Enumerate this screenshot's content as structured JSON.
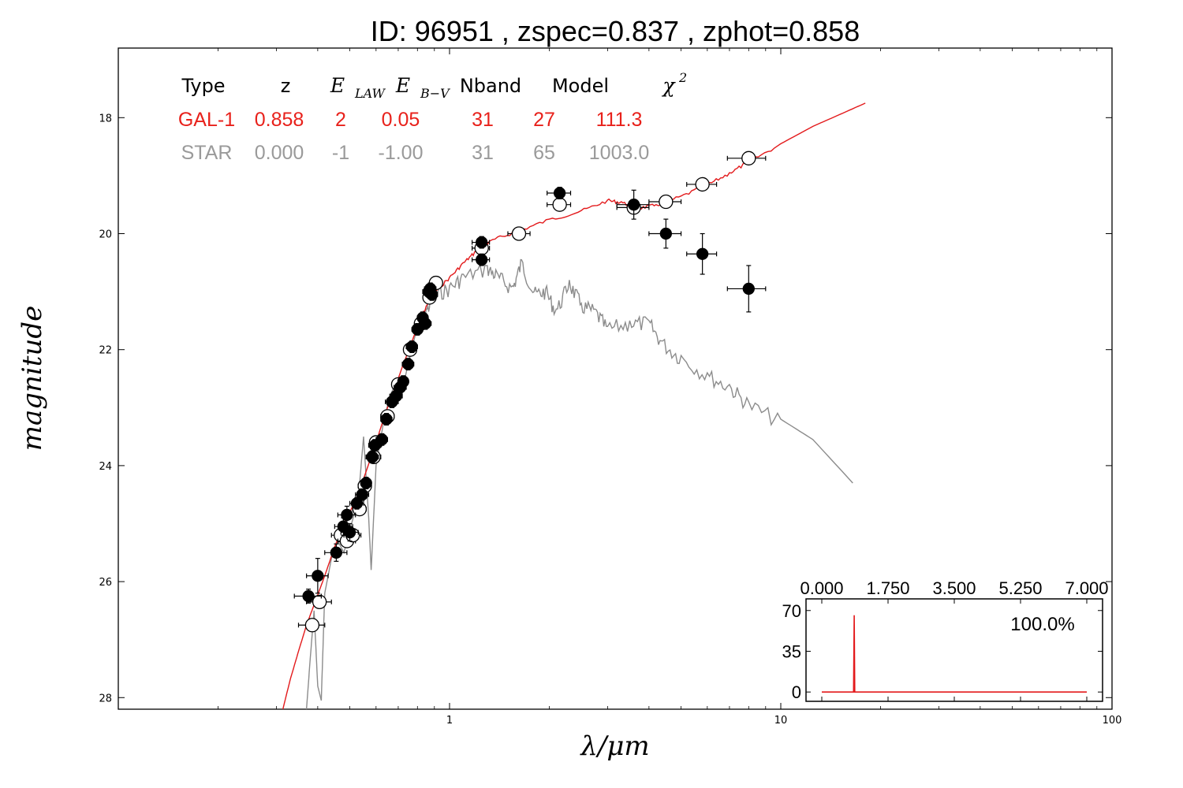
{
  "title": "ID:  96951 , zspec=0.837 , zphot=0.858",
  "chart_data": {
    "type": "scatter",
    "xlabel": "λ/μm",
    "ylabel": "magnitude",
    "xscale": "log",
    "xlim": [
      0.1,
      100
    ],
    "ylim": [
      28.2,
      16.8
    ],
    "y_inverted": true,
    "grid": false,
    "x_tick_labels": [
      "1",
      "10",
      "100"
    ],
    "y_tick_labels": [
      "18",
      "20",
      "22",
      "24",
      "26",
      "28"
    ],
    "table": {
      "headers": [
        "Type",
        "z",
        "E",
        "E",
        "Nband",
        "Model",
        "χ"
      ],
      "header_subscripts": [
        "",
        "",
        "LAW",
        "B−V",
        "",
        "",
        ""
      ],
      "header_superscript_chi": "2",
      "rows": [
        {
          "cells": [
            "GAL-1",
            "0.858",
            "2",
            "0.05",
            "31",
            "27",
            "111.3"
          ],
          "color": "#e8211b"
        },
        {
          "cells": [
            "STAR",
            "0.000",
            "-1",
            "-1.00",
            "31",
            "65",
            "1003.0"
          ],
          "color": "#9a9a9a"
        }
      ]
    },
    "series": [
      {
        "kind": "galaxy-model",
        "color": "#e31a1c",
        "points": [
          [
            0.314,
            28.2
          ],
          [
            0.33,
            27.7
          ],
          [
            0.35,
            27.2
          ],
          [
            0.37,
            26.75
          ],
          [
            0.39,
            26.4
          ],
          [
            0.42,
            25.9
          ],
          [
            0.45,
            25.4
          ],
          [
            0.48,
            25.0
          ],
          [
            0.5,
            24.8
          ],
          [
            0.53,
            24.5
          ],
          [
            0.56,
            24.1
          ],
          [
            0.6,
            23.6
          ],
          [
            0.64,
            23.1
          ],
          [
            0.68,
            22.7
          ],
          [
            0.72,
            22.3
          ],
          [
            0.76,
            21.95
          ],
          [
            0.8,
            21.6
          ],
          [
            0.85,
            21.25
          ],
          [
            0.9,
            21.0
          ],
          [
            1.0,
            20.75
          ],
          [
            1.1,
            20.5
          ],
          [
            1.2,
            20.3
          ],
          [
            1.35,
            20.1
          ],
          [
            1.6,
            19.95
          ],
          [
            2.0,
            19.75
          ],
          [
            2.5,
            19.6
          ],
          [
            3.0,
            19.42
          ],
          [
            3.3,
            19.45
          ],
          [
            3.7,
            19.55
          ],
          [
            4.2,
            19.5
          ],
          [
            5.0,
            19.35
          ],
          [
            6.0,
            19.15
          ],
          [
            7.0,
            18.95
          ],
          [
            8.0,
            18.75
          ],
          [
            10.0,
            18.45
          ],
          [
            12.5,
            18.15
          ],
          [
            15.0,
            17.95
          ],
          [
            18.0,
            17.75
          ]
        ]
      },
      {
        "kind": "star-model",
        "color": "#8c8c8c",
        "points": [
          [
            0.37,
            28.2
          ],
          [
            0.38,
            27.3
          ],
          [
            0.39,
            26.5
          ],
          [
            0.4,
            27.8
          ],
          [
            0.41,
            28.05
          ],
          [
            0.42,
            26.2
          ],
          [
            0.44,
            25.6
          ],
          [
            0.46,
            25.3
          ],
          [
            0.48,
            25.5
          ],
          [
            0.5,
            25.1
          ],
          [
            0.53,
            24.6
          ],
          [
            0.55,
            23.5
          ],
          [
            0.57,
            24.9
          ],
          [
            0.58,
            25.8
          ],
          [
            0.6,
            24.0
          ],
          [
            0.63,
            23.3
          ],
          [
            0.66,
            22.8
          ],
          [
            0.7,
            22.5
          ],
          [
            0.72,
            22.7
          ],
          [
            0.76,
            22.1
          ],
          [
            0.8,
            21.6
          ],
          [
            0.85,
            21.3
          ],
          [
            0.9,
            21.0
          ],
          [
            1.0,
            20.9
          ],
          [
            1.1,
            20.7
          ],
          [
            1.3,
            20.55
          ],
          [
            1.4,
            20.7
          ],
          [
            1.55,
            20.9
          ],
          [
            1.65,
            20.45
          ],
          [
            1.8,
            21.0
          ],
          [
            1.95,
            20.95
          ],
          [
            2.1,
            21.3
          ],
          [
            2.3,
            20.8
          ],
          [
            2.5,
            21.2
          ],
          [
            2.75,
            21.3
          ],
          [
            3.0,
            21.6
          ],
          [
            3.5,
            21.5
          ],
          [
            4.0,
            21.5
          ],
          [
            4.4,
            21.85
          ],
          [
            5.0,
            22.1
          ],
          [
            6.0,
            22.4
          ],
          [
            7.0,
            22.6
          ],
          [
            8.0,
            22.9
          ],
          [
            10.0,
            23.2
          ],
          [
            12.5,
            23.55
          ],
          [
            16.5,
            24.3
          ]
        ]
      },
      {
        "kind": "observed",
        "marker": "filled",
        "color": "#000000",
        "points": [
          {
            "x": 0.375,
            "y": 26.25,
            "xerr": [
              0.34,
              0.41
            ],
            "yerr": 0.12
          },
          {
            "x": 0.4,
            "y": 25.9,
            "xerr": [
              0.37,
              0.43
            ],
            "yerr": 0.3
          },
          {
            "x": 0.455,
            "y": 25.5,
            "xerr": [
              0.42,
              0.49
            ],
            "yerr": 0.15
          },
          {
            "x": 0.478,
            "y": 25.05,
            "xerr": [
              0.45,
              0.51
            ],
            "yerr": 0.15
          },
          {
            "x": 0.49,
            "y": 24.85,
            "xerr": [
              0.46,
              0.52
            ],
            "yerr": 0.15
          },
          {
            "x": 0.5,
            "y": 25.15,
            "xerr": [
              0.47,
              0.53
            ],
            "yerr": 0.15
          },
          {
            "x": 0.525,
            "y": 24.65,
            "xerr": [
              0.5,
              0.55
            ],
            "yerr": 0.1
          },
          {
            "x": 0.545,
            "y": 24.5,
            "xerr": [
              0.52,
              0.57
            ],
            "yerr": 0.1
          },
          {
            "x": 0.56,
            "y": 24.3,
            "xerr": [
              0.54,
              0.58
            ],
            "yerr": 0.1
          },
          {
            "x": 0.585,
            "y": 23.85,
            "xerr": [
              0.56,
              0.61
            ],
            "yerr": 0.1
          },
          {
            "x": 0.595,
            "y": 23.65,
            "xerr": [
              0.57,
              0.62
            ],
            "yerr": 0.1
          },
          {
            "x": 0.625,
            "y": 23.55,
            "xerr": [
              0.6,
              0.65
            ],
            "yerr": 0.1
          },
          {
            "x": 0.645,
            "y": 23.2,
            "xerr": [
              0.62,
              0.67
            ],
            "yerr": 0.1
          },
          {
            "x": 0.67,
            "y": 22.9,
            "xerr": [
              0.64,
              0.7
            ],
            "yerr": 0.1
          },
          {
            "x": 0.69,
            "y": 22.8,
            "xerr": [
              0.66,
              0.72
            ],
            "yerr": 0.1
          },
          {
            "x": 0.71,
            "y": 22.65,
            "xerr": [
              0.68,
              0.74
            ],
            "yerr": 0.1
          },
          {
            "x": 0.725,
            "y": 22.55,
            "xerr": [
              0.7,
              0.75
            ],
            "yerr": 0.1
          },
          {
            "x": 0.75,
            "y": 22.25,
            "xerr": [
              0.72,
              0.78
            ],
            "yerr": 0.1
          },
          {
            "x": 0.77,
            "y": 21.95,
            "xerr": [
              0.74,
              0.8
            ],
            "yerr": 0.1
          },
          {
            "x": 0.8,
            "y": 21.65,
            "xerr": [
              0.77,
              0.83
            ],
            "yerr": 0.1
          },
          {
            "x": 0.83,
            "y": 21.45,
            "xerr": [
              0.8,
              0.86
            ],
            "yerr": 0.1
          },
          {
            "x": 0.845,
            "y": 21.55,
            "xerr": [
              0.81,
              0.88
            ],
            "yerr": 0.1
          },
          {
            "x": 0.865,
            "y": 21.0,
            "xerr": [
              0.83,
              0.9
            ],
            "yerr": 0.1
          },
          {
            "x": 0.875,
            "y": 20.95,
            "xerr": [
              0.84,
              0.91
            ],
            "yerr": 0.1
          },
          {
            "x": 0.885,
            "y": 21.05,
            "xerr": [
              0.85,
              0.92
            ],
            "yerr": 0.1
          },
          {
            "x": 1.25,
            "y": 20.15,
            "xerr": [
              1.17,
              1.32
            ],
            "yerr": 0.1
          },
          {
            "x": 1.25,
            "y": 20.45,
            "xerr": [
              1.17,
              1.32
            ],
            "yerr": 0.1
          },
          {
            "x": 2.15,
            "y": 19.3,
            "xerr": [
              1.97,
              2.32
            ],
            "yerr": 0.1
          },
          {
            "x": 3.6,
            "y": 19.5,
            "xerr": [
              3.2,
              4.0
            ],
            "yerr": 0.25
          },
          {
            "x": 4.5,
            "y": 20.0,
            "xerr": [
              4.0,
              5.0
            ],
            "yerr": 0.25
          },
          {
            "x": 5.8,
            "y": 20.35,
            "xerr": [
              5.2,
              6.4
            ],
            "yerr": 0.35
          },
          {
            "x": 8.0,
            "y": 20.95,
            "xerr": [
              6.9,
              9.0
            ],
            "yerr": 0.4
          }
        ]
      },
      {
        "kind": "model-flux",
        "marker": "open",
        "color": "#000000",
        "points": [
          {
            "x": 0.385,
            "y": 26.75,
            "xerr": [
              0.35,
              0.42
            ]
          },
          {
            "x": 0.405,
            "y": 26.35,
            "xerr": [
              0.37,
              0.44
            ]
          },
          {
            "x": 0.47,
            "y": 25.2,
            "xerr": [
              0.44,
              0.5
            ]
          },
          {
            "x": 0.49,
            "y": 25.3,
            "xerr": [
              0.46,
              0.52
            ]
          },
          {
            "x": 0.51,
            "y": 25.2,
            "xerr": [
              0.48,
              0.54
            ]
          },
          {
            "x": 0.535,
            "y": 24.75,
            "xerr": [
              0.51,
              0.56
            ]
          },
          {
            "x": 0.555,
            "y": 24.35,
            "xerr": [
              0.53,
              0.58
            ]
          },
          {
            "x": 0.59,
            "y": 23.85,
            "xerr": [
              0.56,
              0.62
            ]
          },
          {
            "x": 0.6,
            "y": 23.6,
            "xerr": [
              0.58,
              0.63
            ]
          },
          {
            "x": 0.65,
            "y": 23.15,
            "xerr": [
              0.62,
              0.68
            ]
          },
          {
            "x": 0.7,
            "y": 22.6,
            "xerr": [
              0.67,
              0.73
            ]
          },
          {
            "x": 0.76,
            "y": 22.0,
            "xerr": [
              0.73,
              0.79
            ]
          },
          {
            "x": 0.82,
            "y": 21.55,
            "xerr": [
              0.79,
              0.85
            ]
          },
          {
            "x": 0.87,
            "y": 21.1,
            "xerr": [
              0.84,
              0.9
            ]
          },
          {
            "x": 0.91,
            "y": 20.85,
            "xerr": [
              0.88,
              0.95
            ]
          },
          {
            "x": 1.25,
            "y": 20.25,
            "xerr": [
              1.17,
              1.32
            ]
          },
          {
            "x": 1.62,
            "y": 20.0,
            "xerr": [
              1.5,
              1.75
            ]
          },
          {
            "x": 2.15,
            "y": 19.5,
            "xerr": [
              1.97,
              2.32
            ]
          },
          {
            "x": 3.6,
            "y": 19.55,
            "xerr": [
              3.2,
              4.0
            ]
          },
          {
            "x": 4.5,
            "y": 19.45,
            "xerr": [
              4.0,
              5.0
            ]
          },
          {
            "x": 5.8,
            "y": 19.15,
            "xerr": [
              5.2,
              6.4
            ]
          },
          {
            "x": 8.0,
            "y": 18.7,
            "xerr": [
              6.9,
              9.0
            ]
          }
        ]
      }
    ],
    "inset": {
      "type": "line",
      "color": "#e31a1c",
      "xlim": [
        0,
        7
      ],
      "ylim": [
        -8,
        80
      ],
      "x_tick_labels": [
        "0.000",
        "1.750",
        "3.500",
        "5.250",
        "7.000"
      ],
      "y_tick_labels": [
        "0",
        "35",
        "70"
      ],
      "annotation": "100.0%",
      "points": [
        [
          0.0,
          0
        ],
        [
          0.84,
          0
        ],
        [
          0.856,
          66
        ],
        [
          0.87,
          0
        ],
        [
          7.0,
          0
        ]
      ]
    }
  }
}
